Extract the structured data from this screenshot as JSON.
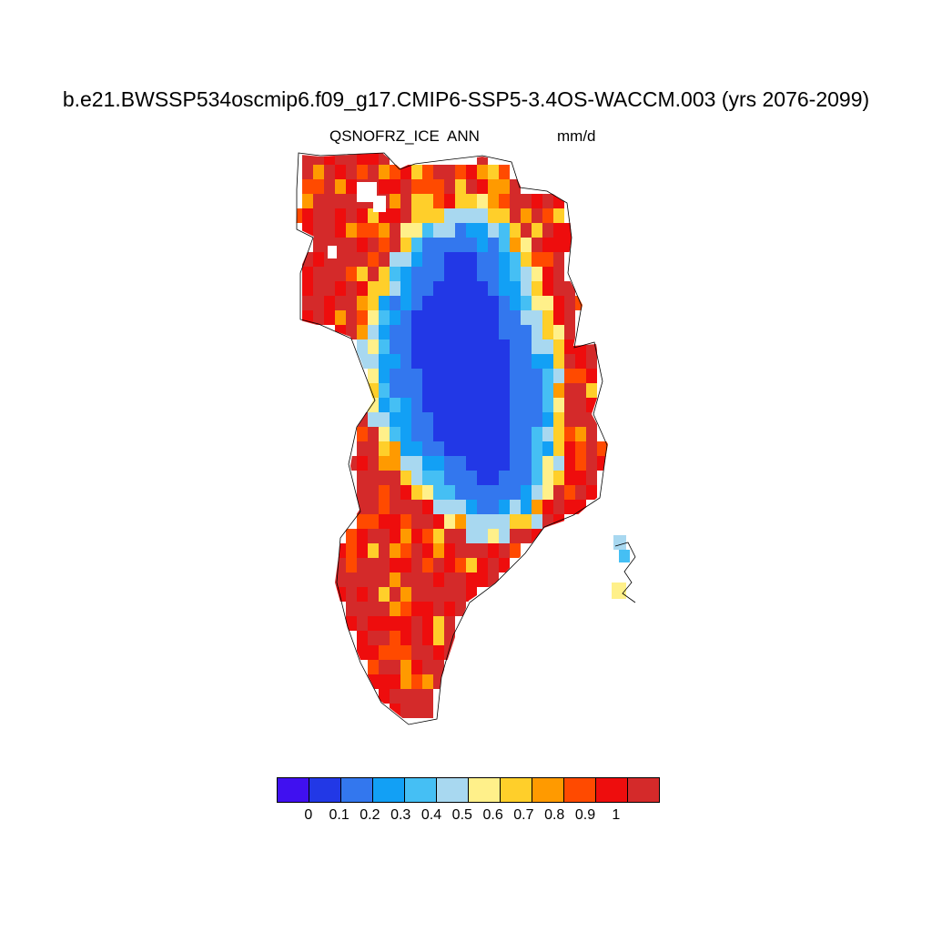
{
  "title": "b.e21.BWSSP534oscmip6.f09_g17.CMIP6-SSP5-3.4OS-WACCM.003 (yrs 2076-2099)",
  "subtitle": {
    "variable": "QSNOFRZ_ICE",
    "season": "ANN",
    "units": "mm/d"
  },
  "colorbar": {
    "colors": [
      "#4010f0",
      "#2238e6",
      "#3377ee",
      "#12a0f5",
      "#45bff4",
      "#a8d8f0",
      "#fff08a",
      "#ffcf2a",
      "#ff9a00",
      "#ff4a00",
      "#ee0d0d",
      "#d42a2a"
    ],
    "labels": [
      "0",
      "0.1",
      "0.2",
      "0.3",
      "0.4",
      "0.5",
      "0.6",
      "0.7",
      "0.8",
      "0.9",
      "1"
    ]
  },
  "map": {
    "region": "Greenland",
    "interior_color": "#2238e6",
    "coast_color": "#d42a2a"
  }
}
